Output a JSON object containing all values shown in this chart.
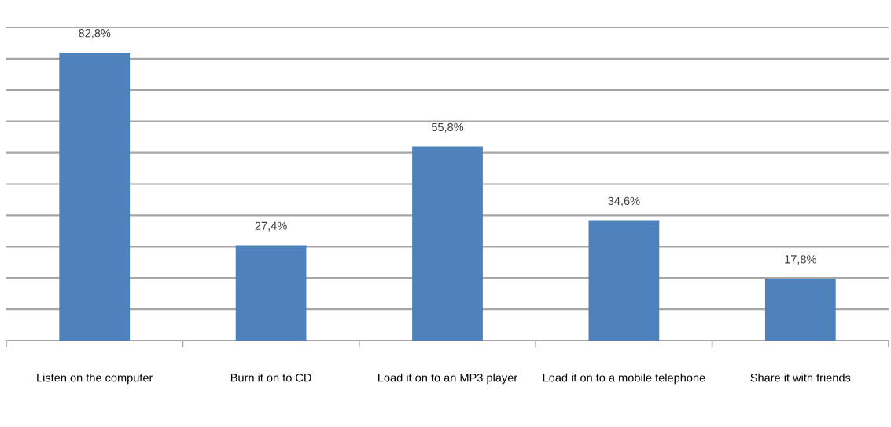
{
  "chart_data": {
    "type": "bar",
    "categories": [
      "Listen on the computer",
      "Burn it on to CD",
      "Load it on to an MP3 player",
      "Load it on to a mobile telephone",
      "Share it with friends"
    ],
    "values": [
      82.8,
      27.4,
      55.8,
      34.6,
      17.8
    ],
    "value_labels": [
      "82,8%",
      "27,4%",
      "55,8%",
      "34,6%",
      "17,8%"
    ],
    "color": "#4f81bd",
    "ylim": [
      0,
      90
    ],
    "yticks": [
      {
        "value": 0,
        "label": null
      },
      {
        "value": 9,
        "label": null
      },
      {
        "value": 18,
        "label": null
      },
      {
        "value": 27,
        "label": null
      },
      {
        "value": 36,
        "label": null
      },
      {
        "value": 45,
        "label": null
      },
      {
        "value": 54,
        "label": null
      },
      {
        "value": 63,
        "label": null
      },
      {
        "value": 72,
        "label": null
      },
      {
        "value": 81,
        "label": null
      },
      {
        "value": 90,
        "label": null
      }
    ],
    "grid": "y"
  }
}
